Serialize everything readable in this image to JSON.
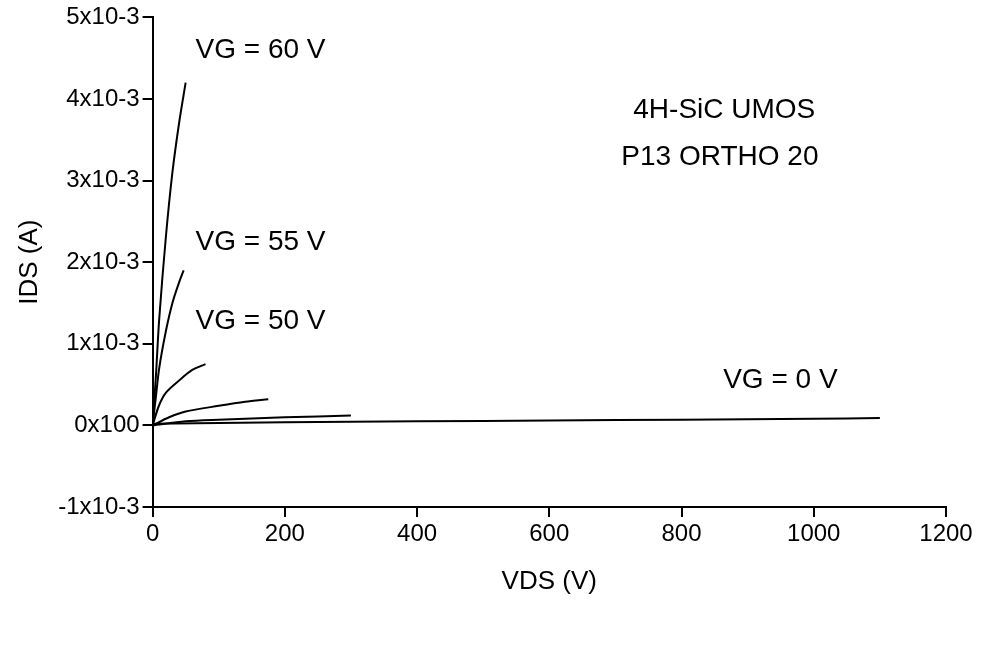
{
  "chart_data": {
    "type": "line",
    "x_label": "VDS (V)",
    "y_label": "IDS (A)",
    "xlim": [
      0,
      1200
    ],
    "xticks": [
      0,
      200,
      400,
      600,
      800,
      1000,
      1200
    ],
    "ylim": [
      -0.001,
      0.005
    ],
    "yticks": [
      {
        "value": -0.001,
        "label": "-1x10-3"
      },
      {
        "value": 0,
        "label": "0x100"
      },
      {
        "value": 0.001,
        "label": "1x10-3"
      },
      {
        "value": 0.002,
        "label": "2x10-3"
      },
      {
        "value": 0.003,
        "label": "3x10-3"
      },
      {
        "value": 0.004,
        "label": "4x10-3"
      },
      {
        "value": 0.005,
        "label": "5x10-3"
      }
    ],
    "grid": false,
    "series": [
      {
        "color": "#000000",
        "x": [
          0,
          5,
          10,
          20,
          30,
          40,
          50
        ],
        "values": [
          0,
          0.0006,
          0.0013,
          0.0023,
          0.0031,
          0.0037,
          0.0042
        ]
      },
      {
        "color": "#000000",
        "x": [
          0,
          5,
          10,
          20,
          30,
          40,
          47
        ],
        "values": [
          0,
          0.00035,
          0.0007,
          0.00115,
          0.0015,
          0.00175,
          0.0019
        ]
      },
      {
        "color": "#000000",
        "x": [
          0,
          10,
          20,
          40,
          60,
          80
        ],
        "values": [
          0,
          0.00025,
          0.0004,
          0.00055,
          0.00068,
          0.00075
        ]
      },
      {
        "color": "#000000",
        "x": [
          0,
          25,
          50,
          100,
          140,
          175
        ],
        "values": [
          0,
          0.0001,
          0.00017,
          0.00024,
          0.00029,
          0.00032
        ]
      },
      {
        "color": "#000000",
        "x": [
          0,
          50,
          100,
          200,
          300
        ],
        "values": [
          0,
          5e-05,
          7e-05,
          0.0001,
          0.00012
        ]
      },
      {
        "color": "#000000",
        "x": [
          0,
          200,
          400,
          600,
          800,
          1000,
          1100
        ],
        "values": [
          2e-05,
          4e-05,
          5e-05,
          6e-05,
          7e-05,
          8e-05,
          9e-05
        ]
      }
    ],
    "annotations": [
      {
        "text": "VG = 60 V",
        "x": 65,
        "y": 0.0046
      },
      {
        "text": "VG = 55 V",
        "x": 65,
        "y": 0.00225
      },
      {
        "text": "VG = 50 V",
        "x": 65,
        "y": 0.00128
      },
      {
        "text": "VG = 0 V",
        "x": 863,
        "y": 0.00055
      },
      {
        "text": "4H-SiC UMOS",
        "x": 727,
        "y": 0.00386
      },
      {
        "text": "P13 ORTHO 20",
        "x": 709,
        "y": 0.00329
      }
    ]
  }
}
